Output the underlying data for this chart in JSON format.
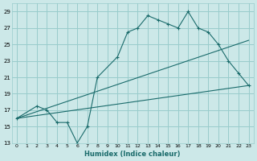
{
  "xlabel": "Humidex (Indice chaleur)",
  "xlim": [
    -0.5,
    23.5
  ],
  "ylim": [
    13,
    30
  ],
  "yticks": [
    13,
    15,
    17,
    19,
    21,
    23,
    25,
    27,
    29
  ],
  "xticks": [
    0,
    1,
    2,
    3,
    4,
    5,
    6,
    7,
    8,
    9,
    10,
    11,
    12,
    13,
    14,
    15,
    16,
    17,
    18,
    19,
    20,
    21,
    22,
    23
  ],
  "bg_color": "#cce8e8",
  "grid_color": "#99cccc",
  "line_color": "#1a6b6b",
  "lines": [
    {
      "x": [
        0,
        2,
        3,
        4,
        5,
        6,
        7,
        8,
        10,
        11,
        12,
        13,
        14,
        15,
        16,
        17,
        18,
        19,
        20,
        21,
        22,
        23
      ],
      "y": [
        16,
        17.5,
        17,
        15.5,
        15.5,
        13,
        15,
        21,
        23.5,
        26.5,
        27,
        28.5,
        28,
        27.5,
        27,
        29,
        27,
        26.5,
        25,
        23,
        21.5,
        20
      ],
      "marker": true
    },
    {
      "x": [
        0,
        23
      ],
      "y": [
        16,
        25.5
      ],
      "marker": false
    },
    {
      "x": [
        0,
        23
      ],
      "y": [
        16,
        20
      ],
      "marker": false
    }
  ]
}
